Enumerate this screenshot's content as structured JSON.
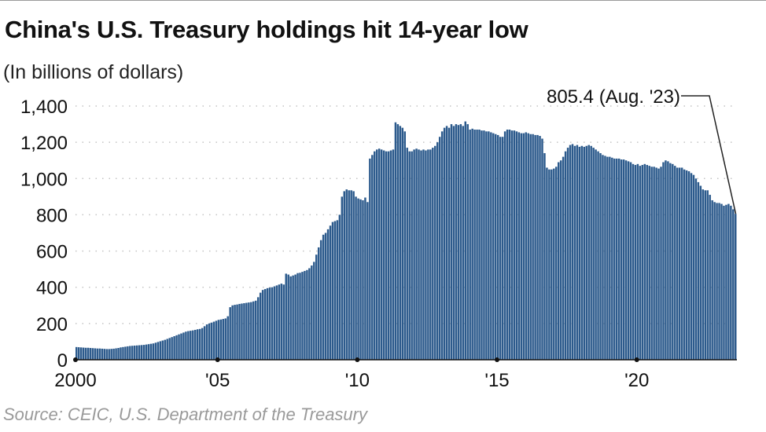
{
  "chart_data": {
    "type": "bar",
    "title": "China's U.S. Treasury holdings hit 14-year low",
    "subtitle": "(In billions of dollars)",
    "source": "Source: CEIC, U.S. Department of the Treasury",
    "x_start": "2000-01",
    "x_end": "2023-08",
    "frequency": "monthly",
    "x_ticks": [
      {
        "year": 2000,
        "label": "2000"
      },
      {
        "year": 2005,
        "label": "'05"
      },
      {
        "year": 2010,
        "label": "'10"
      },
      {
        "year": 2015,
        "label": "'15"
      },
      {
        "year": 2020,
        "label": "'20"
      }
    ],
    "y_ticks": [
      0,
      200,
      400,
      600,
      800,
      1000,
      1200,
      1400
    ],
    "y_tick_labels": [
      "0",
      "200",
      "400",
      "600",
      "800",
      "1,000",
      "1,200",
      "1,400"
    ],
    "ylim": [
      0,
      1400
    ],
    "grid": "horizontal dotted",
    "bar_color": "#2c5a8c",
    "annotation": {
      "text": "805.4 (Aug. '23)",
      "value": 805.4,
      "date": "2023-08"
    },
    "values": [
      70,
      69,
      68,
      67,
      66,
      66,
      65,
      64,
      63,
      62,
      62,
      61,
      60,
      59,
      59,
      60,
      61,
      63,
      65,
      68,
      70,
      72,
      74,
      76,
      77,
      78,
      79,
      80,
      81,
      82,
      84,
      86,
      88,
      90,
      94,
      98,
      102,
      106,
      110,
      115,
      120,
      125,
      130,
      135,
      140,
      145,
      150,
      155,
      158,
      160,
      162,
      165,
      168,
      170,
      175,
      185,
      195,
      200,
      205,
      210,
      215,
      220,
      222,
      225,
      228,
      240,
      290,
      300,
      303,
      305,
      308,
      310,
      312,
      314,
      316,
      318,
      322,
      326,
      345,
      370,
      385,
      390,
      395,
      398,
      400,
      405,
      410,
      415,
      420,
      415,
      475,
      470,
      460,
      465,
      470,
      478,
      480,
      485,
      490,
      495,
      505,
      520,
      540,
      580,
      620,
      660,
      690,
      700,
      720,
      740,
      760,
      765,
      770,
      800,
      900,
      930,
      940,
      935,
      935,
      930,
      900,
      890,
      885,
      880,
      895,
      870,
      1110,
      1130,
      1150,
      1160,
      1165,
      1160,
      1155,
      1150,
      1150,
      1155,
      1160,
      1310,
      1300,
      1290,
      1280,
      1260,
      1170,
      1150,
      1150,
      1160,
      1165,
      1160,
      1155,
      1160,
      1155,
      1160,
      1160,
      1170,
      1180,
      1200,
      1230,
      1260,
      1280,
      1290,
      1280,
      1300,
      1290,
      1300,
      1295,
      1300,
      1290,
      1315,
      1300,
      1270,
      1275,
      1270,
      1270,
      1270,
      1265,
      1265,
      1260,
      1260,
      1255,
      1250,
      1245,
      1240,
      1230,
      1230,
      1260,
      1270,
      1270,
      1265,
      1265,
      1260,
      1255,
      1250,
      1250,
      1255,
      1250,
      1245,
      1245,
      1240,
      1240,
      1235,
      1220,
      1140,
      1060,
      1050,
      1050,
      1055,
      1065,
      1090,
      1100,
      1120,
      1150,
      1170,
      1185,
      1190,
      1180,
      1185,
      1175,
      1180,
      1175,
      1180,
      1185,
      1180,
      1170,
      1160,
      1150,
      1140,
      1130,
      1125,
      1120,
      1120,
      1115,
      1110,
      1110,
      1110,
      1105,
      1105,
      1100,
      1095,
      1090,
      1080,
      1075,
      1080,
      1070,
      1075,
      1080,
      1075,
      1070,
      1065,
      1065,
      1060,
      1055,
      1065,
      1090,
      1100,
      1095,
      1085,
      1080,
      1070,
      1060,
      1060,
      1060,
      1050,
      1045,
      1040,
      1030,
      1020,
      1000,
      980,
      960,
      940,
      935,
      935,
      910,
      880,
      870,
      865,
      865,
      860,
      850,
      855,
      860,
      850,
      830,
      805.4
    ]
  }
}
